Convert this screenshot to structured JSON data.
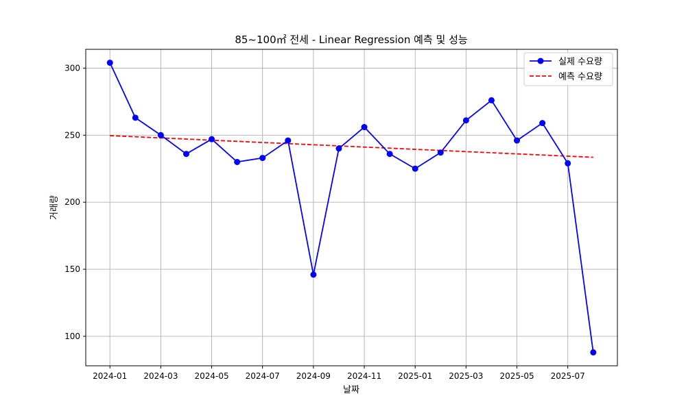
{
  "chart_data": {
    "type": "line",
    "title": "85~100㎡ 전세 - Linear Regression 예측 및 성능",
    "xlabel": "날짜",
    "ylabel": "거래량",
    "x": [
      "2024-01",
      "2024-02",
      "2024-03",
      "2024-04",
      "2024-05",
      "2024-06",
      "2024-07",
      "2024-08",
      "2024-09",
      "2024-10",
      "2024-11",
      "2024-12",
      "2025-01",
      "2025-02",
      "2025-03",
      "2025-04",
      "2025-05",
      "2025-06",
      "2025-07",
      "2025-08"
    ],
    "x_ticks": [
      "2024-01",
      "2024-03",
      "2024-05",
      "2024-07",
      "2024-09",
      "2024-11",
      "2025-01",
      "2025-03",
      "2025-05",
      "2025-07"
    ],
    "y_ticks": [
      100,
      150,
      200,
      250,
      300
    ],
    "ylim": [
      78,
      314
    ],
    "grid": true,
    "legend_position": "top-right",
    "series": [
      {
        "name": "실제 수요량",
        "style": "solid-with-markers",
        "color": "#0000ff",
        "values": [
          304,
          263,
          250,
          236,
          247,
          230,
          233,
          246,
          146,
          240,
          256,
          236,
          225,
          237,
          261,
          276,
          246,
          259,
          229,
          88
        ]
      },
      {
        "name": "예측 수요량",
        "style": "dashed",
        "color": "#ff0000",
        "values": [
          249.6,
          248.8,
          247.9,
          247.1,
          246.2,
          245.4,
          244.5,
          243.7,
          242.8,
          242.0,
          241.1,
          240.3,
          239.4,
          238.6,
          237.7,
          236.9,
          236.0,
          235.2,
          234.3,
          233.5
        ]
      }
    ]
  }
}
